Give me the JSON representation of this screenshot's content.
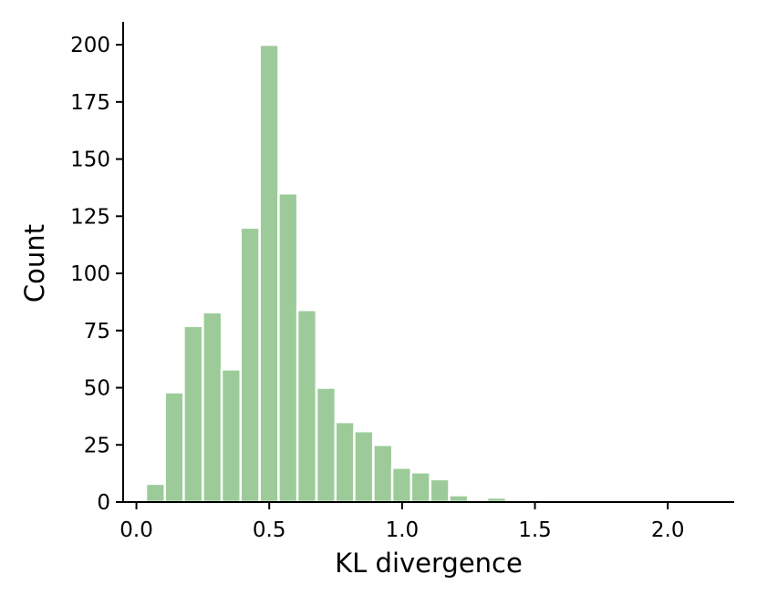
{
  "chart_data": {
    "type": "bar",
    "title": "",
    "xlabel": "KL divergence",
    "ylabel": "Count",
    "xlim": [
      -0.05,
      2.25
    ],
    "ylim": [
      0,
      210
    ],
    "xticks": [
      0.0,
      0.5,
      1.0,
      1.5,
      2.0
    ],
    "xtick_labels": [
      "0.0",
      "0.5",
      "1.0",
      "1.5",
      "2.0"
    ],
    "yticks": [
      0,
      25,
      50,
      75,
      100,
      125,
      150,
      175,
      200
    ],
    "ytick_labels": [
      "0",
      "25",
      "50",
      "75",
      "100",
      "125",
      "150",
      "175",
      "200"
    ],
    "bin_width": 0.0713,
    "bins": [
      {
        "x0": 0.036,
        "value": 8
      },
      {
        "x0": 0.107,
        "value": 48
      },
      {
        "x0": 0.178,
        "value": 77
      },
      {
        "x0": 0.25,
        "value": 83
      },
      {
        "x0": 0.321,
        "value": 58
      },
      {
        "x0": 0.392,
        "value": 120
      },
      {
        "x0": 0.464,
        "value": 200
      },
      {
        "x0": 0.535,
        "value": 135
      },
      {
        "x0": 0.606,
        "value": 84
      },
      {
        "x0": 0.678,
        "value": 50
      },
      {
        "x0": 0.749,
        "value": 35
      },
      {
        "x0": 0.82,
        "value": 31
      },
      {
        "x0": 0.892,
        "value": 25
      },
      {
        "x0": 0.963,
        "value": 15
      },
      {
        "x0": 1.034,
        "value": 13
      },
      {
        "x0": 1.106,
        "value": 10
      },
      {
        "x0": 1.177,
        "value": 3
      },
      {
        "x0": 1.249,
        "value": 1
      },
      {
        "x0": 1.32,
        "value": 2
      },
      {
        "x0": 1.391,
        "value": 0
      },
      {
        "x0": 1.463,
        "value": 1
      },
      {
        "x0": 1.534,
        "value": 0
      },
      {
        "x0": 1.605,
        "value": 0
      },
      {
        "x0": 1.677,
        "value": 0
      },
      {
        "x0": 1.748,
        "value": 0
      },
      {
        "x0": 1.819,
        "value": 0
      },
      {
        "x0": 1.891,
        "value": 0
      },
      {
        "x0": 1.962,
        "value": 0
      },
      {
        "x0": 2.033,
        "value": 0
      },
      {
        "x0": 2.105,
        "value": 1
      }
    ],
    "bar_color": "#9ccb99",
    "bar_edge_color": "#ffffff",
    "axis_color": "#000000",
    "grid": false,
    "legend": "none",
    "spines": [
      "left",
      "bottom"
    ]
  }
}
